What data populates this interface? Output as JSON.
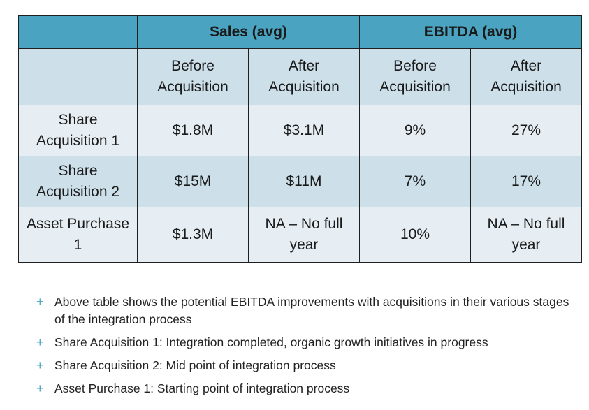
{
  "table": {
    "group_headers": [
      "",
      "Sales (avg)",
      "EBITDA (avg)"
    ],
    "sub_headers": [
      "",
      "Before Acquisition",
      "After Acquisition",
      "Before Acquisition",
      "After Acquisition"
    ],
    "rows": [
      {
        "label": "Share Acquisition 1",
        "cells": [
          "$1.8M",
          "$3.1M",
          "9%",
          "27%"
        ]
      },
      {
        "label": "Share Acquisition 2",
        "cells": [
          "$15M",
          "$11M",
          "7%",
          "17%"
        ]
      },
      {
        "label": "Asset Purchase 1",
        "cells": [
          "$1.3M",
          "NA – No full year",
          "10%",
          "NA – No full year"
        ]
      }
    ]
  },
  "bullet_marker": "+",
  "bullets": [
    "Above table shows the potential EBITDA improvements with acquisitions in their various stages of the integration process",
    "Share Acquisition 1: Integration completed, organic growth initiatives in progress",
    "Share Acquisition 2: Mid point of integration process",
    "Asset Purchase 1: Starting point of integration process"
  ],
  "colors": {
    "header": "#4aa3c0",
    "row_dark": "#cde0ea",
    "row_light": "#e6eef3",
    "accent": "#4aa3c0"
  }
}
